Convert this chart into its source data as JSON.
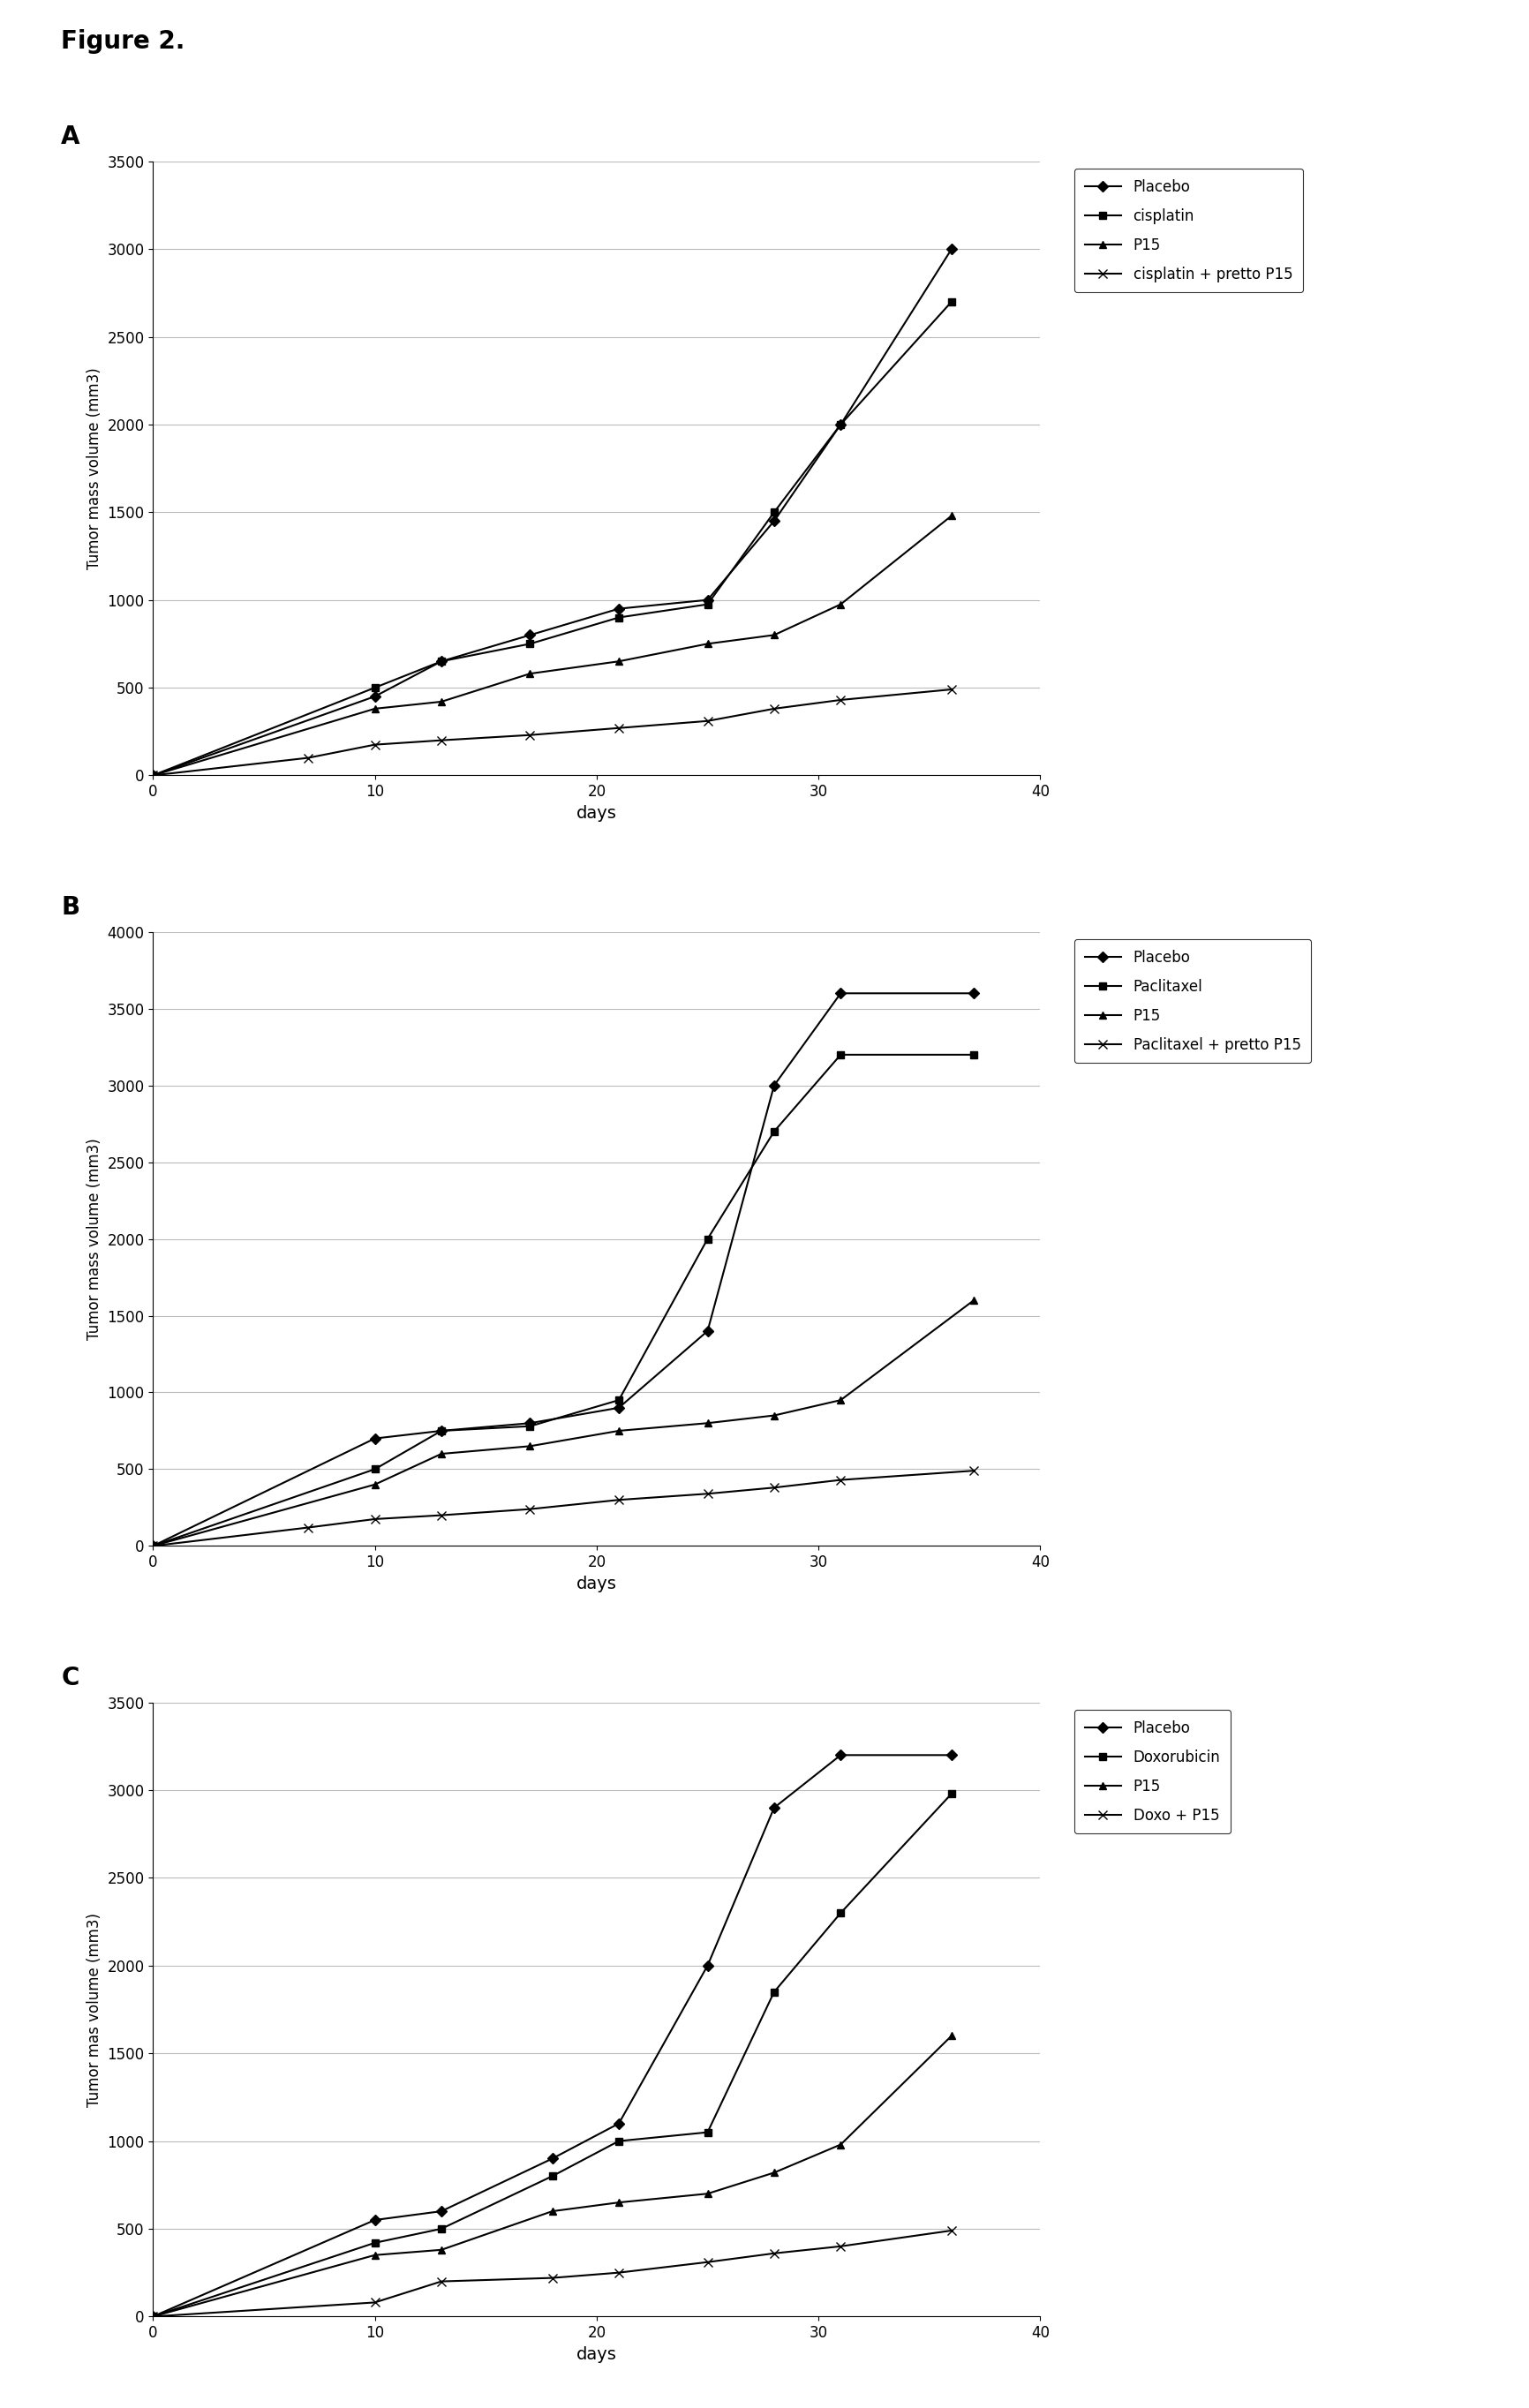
{
  "figure_title": "Figure 2.",
  "background_color": "#ffffff",
  "text_color": "#000000",
  "panel_A": {
    "label": "A",
    "ylabel": "Tumor mass volume (mm3)",
    "xlabel": "days",
    "ylim": [
      0,
      3500
    ],
    "xlim": [
      0,
      40
    ],
    "yticks": [
      0,
      500,
      1000,
      1500,
      2000,
      2500,
      3000,
      3500
    ],
    "xticks": [
      0,
      10,
      20,
      30,
      40
    ],
    "series": [
      {
        "label": "Placebo",
        "x": [
          0,
          10,
          13,
          17,
          21,
          25,
          28,
          31,
          36
        ],
        "y": [
          0,
          450,
          650,
          800,
          950,
          1000,
          1450,
          2000,
          3000
        ],
        "marker": "D",
        "linestyle": "-",
        "color": "#000000",
        "markersize": 6
      },
      {
        "label": "cisplatin",
        "x": [
          0,
          10,
          13,
          17,
          21,
          25,
          28,
          31,
          36
        ],
        "y": [
          0,
          500,
          650,
          750,
          900,
          975,
          1500,
          2000,
          2700
        ],
        "marker": "s",
        "linestyle": "-",
        "color": "#000000",
        "markersize": 6
      },
      {
        "label": "P15",
        "x": [
          0,
          10,
          13,
          17,
          21,
          25,
          28,
          31,
          36
        ],
        "y": [
          0,
          380,
          420,
          580,
          650,
          750,
          800,
          975,
          1480
        ],
        "marker": "^",
        "linestyle": "-",
        "color": "#000000",
        "markersize": 6
      },
      {
        "label": "cisplatin + pretto P15",
        "x": [
          0,
          7,
          10,
          13,
          17,
          21,
          25,
          28,
          31,
          36
        ],
        "y": [
          0,
          100,
          175,
          200,
          230,
          270,
          310,
          380,
          430,
          490
        ],
        "marker": "x",
        "linestyle": "-",
        "color": "#000000",
        "markersize": 7
      }
    ]
  },
  "panel_B": {
    "label": "B",
    "ylabel": "Tumor mass volume (mm3)",
    "xlabel": "days",
    "ylim": [
      0,
      4000
    ],
    "xlim": [
      0,
      40
    ],
    "yticks": [
      0,
      500,
      1000,
      1500,
      2000,
      2500,
      3000,
      3500,
      4000
    ],
    "xticks": [
      0,
      10,
      20,
      30,
      40
    ],
    "series": [
      {
        "label": "Placebo",
        "x": [
          0,
          10,
          13,
          17,
          21,
          25,
          28,
          31,
          37
        ],
        "y": [
          0,
          700,
          750,
          800,
          900,
          1400,
          3000,
          3600,
          3600
        ],
        "marker": "D",
        "linestyle": "-",
        "color": "#000000",
        "markersize": 6
      },
      {
        "label": "Paclitaxel",
        "x": [
          0,
          10,
          13,
          17,
          21,
          25,
          28,
          31,
          37
        ],
        "y": [
          0,
          500,
          750,
          780,
          950,
          2000,
          2700,
          3200,
          3200
        ],
        "marker": "s",
        "linestyle": "-",
        "color": "#000000",
        "markersize": 6
      },
      {
        "label": "P15",
        "x": [
          0,
          10,
          13,
          17,
          21,
          25,
          28,
          31,
          37
        ],
        "y": [
          0,
          400,
          600,
          650,
          750,
          800,
          850,
          950,
          1600
        ],
        "marker": "^",
        "linestyle": "-",
        "color": "#000000",
        "markersize": 6
      },
      {
        "label": "Paclitaxel + pretto P15",
        "x": [
          0,
          7,
          10,
          13,
          17,
          21,
          25,
          28,
          31,
          37
        ],
        "y": [
          0,
          120,
          175,
          200,
          240,
          300,
          340,
          380,
          430,
          490
        ],
        "marker": "x",
        "linestyle": "-",
        "color": "#000000",
        "markersize": 7
      }
    ]
  },
  "panel_C": {
    "label": "C",
    "ylabel": "Tumor mas volume (mm3)",
    "xlabel": "days",
    "ylim": [
      0,
      3500
    ],
    "xlim": [
      0,
      40
    ],
    "yticks": [
      0,
      500,
      1000,
      1500,
      2000,
      2500,
      3000,
      3500
    ],
    "xticks": [
      0,
      10,
      20,
      30,
      40
    ],
    "series": [
      {
        "label": "Placebo",
        "x": [
          0,
          10,
          13,
          18,
          21,
          25,
          28,
          31,
          36
        ],
        "y": [
          0,
          550,
          600,
          900,
          1100,
          2000,
          2900,
          3200,
          3200
        ],
        "marker": "D",
        "linestyle": "-",
        "color": "#000000",
        "markersize": 6
      },
      {
        "label": "Doxorubicin",
        "x": [
          0,
          10,
          13,
          18,
          21,
          25,
          28,
          31,
          36
        ],
        "y": [
          0,
          420,
          500,
          800,
          1000,
          1050,
          1850,
          2300,
          2980
        ],
        "marker": "s",
        "linestyle": "-",
        "color": "#000000",
        "markersize": 6
      },
      {
        "label": "P15",
        "x": [
          0,
          10,
          13,
          18,
          21,
          25,
          28,
          31,
          36
        ],
        "y": [
          0,
          350,
          380,
          600,
          650,
          700,
          820,
          980,
          1600
        ],
        "marker": "^",
        "linestyle": "-",
        "color": "#000000",
        "markersize": 6
      },
      {
        "label": "Doxo + P15",
        "x": [
          0,
          10,
          13,
          18,
          21,
          25,
          28,
          31,
          36
        ],
        "y": [
          0,
          80,
          200,
          220,
          250,
          310,
          360,
          400,
          490
        ],
        "marker": "x",
        "linestyle": "-",
        "color": "#000000",
        "markersize": 7
      }
    ]
  }
}
